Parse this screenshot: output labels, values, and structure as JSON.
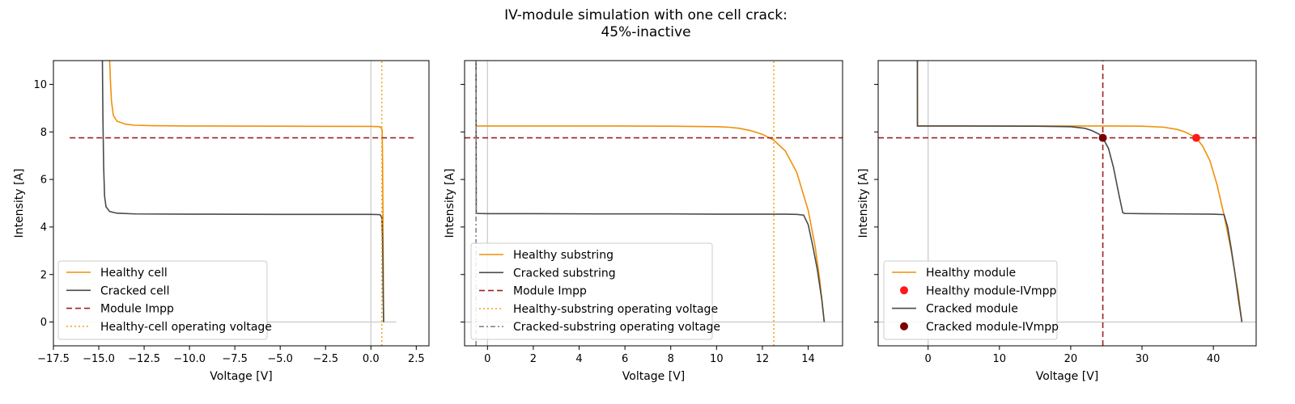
{
  "figure": {
    "title_line1": "IV-module simulation with one cell crack:",
    "title_line2": "45%-inactive"
  },
  "colors": {
    "healthy": "#f0900a",
    "cracked": "#4a4a4a",
    "impp": "#a02020",
    "operating_healthy": "#f5a623",
    "operating_cracked": "#888888",
    "zero_lines": "#cccccc",
    "mpp_healthy": "#ff1a1a",
    "mpp_cracked": "#7a0000"
  },
  "chart_data": [
    {
      "type": "line",
      "xlabel": "Voltage [V]",
      "ylabel": "Intensity [A]",
      "xlim": [
        -17.5,
        3.2
      ],
      "ylim": [
        -1,
        11
      ],
      "xticks": [
        -17.5,
        -15.0,
        -12.5,
        -10.0,
        -7.5,
        -5.0,
        -2.5,
        0.0,
        2.5
      ],
      "xtick_labels": [
        "−17.5",
        "−15.0",
        "−12.5",
        "−10.0",
        "−7.5",
        "−5.0",
        "−2.5",
        "0.0",
        "2.5"
      ],
      "yticks": [
        0,
        2,
        4,
        6,
        8,
        10
      ],
      "ytick_labels": [
        "0",
        "2",
        "4",
        "6",
        "8",
        "10"
      ],
      "legend": [
        "Healthy cell",
        "Cracked cell",
        "Module Impp",
        "Healthy-cell operating voltage"
      ],
      "series": [
        {
          "name": "Healthy cell",
          "style": "solid",
          "color_key": "healthy",
          "x": [
            -14.4,
            -14.35,
            -14.3,
            -14.2,
            -14.0,
            -13.5,
            -13.0,
            -12.0,
            -10.0,
            -5.0,
            0.0,
            0.5,
            0.62,
            0.64,
            0.66,
            0.68,
            0.7
          ],
          "y": [
            11.0,
            10.0,
            9.3,
            8.7,
            8.45,
            8.32,
            8.28,
            8.26,
            8.25,
            8.24,
            8.23,
            8.22,
            8.1,
            7.0,
            5.0,
            2.5,
            0.0
          ]
        },
        {
          "name": "Cracked cell",
          "style": "solid",
          "color_key": "cracked",
          "x": [
            -14.8,
            -14.77,
            -14.73,
            -14.68,
            -14.6,
            -14.4,
            -14.0,
            -13.0,
            -10.0,
            -5.0,
            0.0,
            0.5,
            0.6,
            0.64,
            0.66,
            0.68,
            0.7
          ],
          "y": [
            11.0,
            8.5,
            6.5,
            5.3,
            4.85,
            4.65,
            4.58,
            4.55,
            4.54,
            4.53,
            4.53,
            4.52,
            4.4,
            3.5,
            2.5,
            1.0,
            0.0
          ]
        },
        {
          "name": "Module Impp",
          "style": "dashed",
          "color_key": "impp",
          "x": [
            -16.6,
            2.4
          ],
          "y": [
            7.75,
            7.75
          ]
        },
        {
          "name": "Healthy-cell operating voltage",
          "style": "dotted",
          "color_key": "operating_healthy",
          "x": [
            0.6,
            0.6
          ],
          "y": [
            -1,
            11
          ]
        }
      ],
      "reference_lines": {
        "x_zero": {
          "x": [
            0,
            0
          ],
          "y": [
            -1,
            11
          ]
        },
        "y_zero": {
          "x": [
            -16.6,
            1.4
          ],
          "y": [
            0,
            0
          ]
        }
      }
    },
    {
      "type": "line",
      "xlabel": "Voltage [V]",
      "ylabel": "Intensity [A]",
      "xlim": [
        -1.0,
        15.5
      ],
      "ylim": [
        -1,
        11
      ],
      "xticks": [
        0,
        2,
        4,
        6,
        8,
        10,
        12,
        14
      ],
      "xtick_labels": [
        "0",
        "2",
        "4",
        "6",
        "8",
        "10",
        "12",
        "14"
      ],
      "yticks": [
        0,
        2,
        4,
        6,
        8,
        10
      ],
      "ytick_labels": [],
      "legend": [
        "Healthy substring",
        "Cracked substring",
        "Module Impp",
        "Healthy-substring operating voltage",
        "Cracked-substring operating voltage"
      ],
      "series": [
        {
          "name": "Healthy substring",
          "style": "solid",
          "color_key": "healthy",
          "x": [
            -0.5,
            2,
            5,
            8,
            10,
            10.5,
            11,
            11.5,
            12.0,
            12.5,
            13.0,
            13.5,
            14.0,
            14.3,
            14.5,
            14.7
          ],
          "y": [
            8.25,
            8.25,
            8.25,
            8.24,
            8.22,
            8.2,
            8.15,
            8.05,
            7.9,
            7.65,
            7.2,
            6.3,
            4.7,
            3.2,
            1.8,
            0.0
          ]
        },
        {
          "name": "Cracked substring",
          "style": "solid",
          "color_key": "cracked",
          "x": [
            -0.5,
            -0.49,
            0,
            2,
            5,
            8,
            10,
            12,
            13,
            13.5,
            13.8,
            14.0,
            14.2,
            14.4,
            14.6,
            14.7
          ],
          "y": [
            11.0,
            4.57,
            4.56,
            4.56,
            4.55,
            4.55,
            4.54,
            4.54,
            4.54,
            4.53,
            4.5,
            4.1,
            3.2,
            2.2,
            0.9,
            0.0
          ]
        },
        {
          "name": "Module Impp",
          "style": "dashed",
          "color_key": "impp",
          "x": [
            -1.0,
            15.5
          ],
          "y": [
            7.75,
            7.75
          ]
        },
        {
          "name": "Healthy-substring operating voltage",
          "style": "dotted",
          "color_key": "operating_healthy",
          "x": [
            12.5,
            12.5
          ],
          "y": [
            -1,
            11
          ]
        },
        {
          "name": "Cracked-substring operating voltage",
          "style": "dashdot",
          "color_key": "operating_cracked",
          "x": [
            -0.5,
            -0.5
          ],
          "y": [
            -1,
            11
          ]
        }
      ],
      "reference_lines": {
        "x_zero": {
          "x": [
            0,
            0
          ],
          "y": [
            -1,
            11
          ]
        },
        "y_zero": {
          "x": [
            -1.0,
            15.5
          ],
          "y": [
            0,
            0
          ]
        }
      }
    },
    {
      "type": "line",
      "xlabel": "Voltage [V]",
      "ylabel": "Intensity [A]",
      "xlim": [
        -7,
        46
      ],
      "ylim": [
        -1,
        11
      ],
      "xticks": [
        0,
        10,
        20,
        30,
        40
      ],
      "xtick_labels": [
        "0",
        "10",
        "20",
        "30",
        "40"
      ],
      "yticks": [
        0,
        2,
        4,
        6,
        8,
        10
      ],
      "ytick_labels": [],
      "legend": [
        "Healthy module",
        "Healthy module-IVmpp",
        "Cracked module",
        "Cracked module-IVmpp"
      ],
      "series": [
        {
          "name": "Healthy module",
          "style": "solid",
          "color_key": "healthy",
          "x": [
            -1.5,
            -1.49,
            5,
            15,
            25,
            30,
            33,
            35,
            36,
            37,
            37.6,
            38.5,
            39.5,
            40.5,
            41.5,
            42.5,
            43.5,
            44.0
          ],
          "y": [
            11.0,
            8.25,
            8.25,
            8.25,
            8.25,
            8.24,
            8.2,
            8.1,
            8.0,
            7.85,
            7.75,
            7.4,
            6.8,
            5.8,
            4.5,
            3.0,
            1.2,
            0.0
          ]
        },
        {
          "name": "Cracked module",
          "style": "solid",
          "color_key": "cracked",
          "x": [
            -1.5,
            -1.49,
            5,
            15,
            20,
            22,
            23,
            24,
            24.5,
            25.3,
            26,
            26.8,
            27.3,
            27.6,
            30,
            35,
            40,
            41.5,
            42.0,
            42.5,
            43.0,
            43.5,
            44.0
          ],
          "y": [
            11.0,
            8.25,
            8.25,
            8.24,
            8.22,
            8.15,
            8.05,
            7.9,
            7.75,
            7.3,
            6.5,
            5.3,
            4.6,
            4.57,
            4.56,
            4.55,
            4.54,
            4.52,
            4.0,
            3.1,
            2.1,
            1.0,
            0.0
          ]
        },
        {
          "name": "Module Impp",
          "style": "dashed",
          "color_key": "impp",
          "x": [
            -7,
            46
          ],
          "y": [
            7.75,
            7.75
          ]
        },
        {
          "name": "Cracked module operating voltage",
          "style": "dashed",
          "color_key": "impp",
          "x": [
            24.5,
            24.5
          ],
          "y": [
            -1,
            11
          ]
        }
      ],
      "points": [
        {
          "name": "Healthy module-IVmpp",
          "x": 37.6,
          "y": 7.75,
          "color_key": "mpp_healthy"
        },
        {
          "name": "Cracked module-IVmpp",
          "x": 24.5,
          "y": 7.75,
          "color_key": "mpp_cracked"
        }
      ],
      "reference_lines": {
        "x_zero": {
          "x": [
            0,
            0
          ],
          "y": [
            -1,
            11
          ]
        },
        "y_zero": {
          "x": [
            -7,
            46
          ],
          "y": [
            0,
            0
          ]
        }
      }
    }
  ]
}
